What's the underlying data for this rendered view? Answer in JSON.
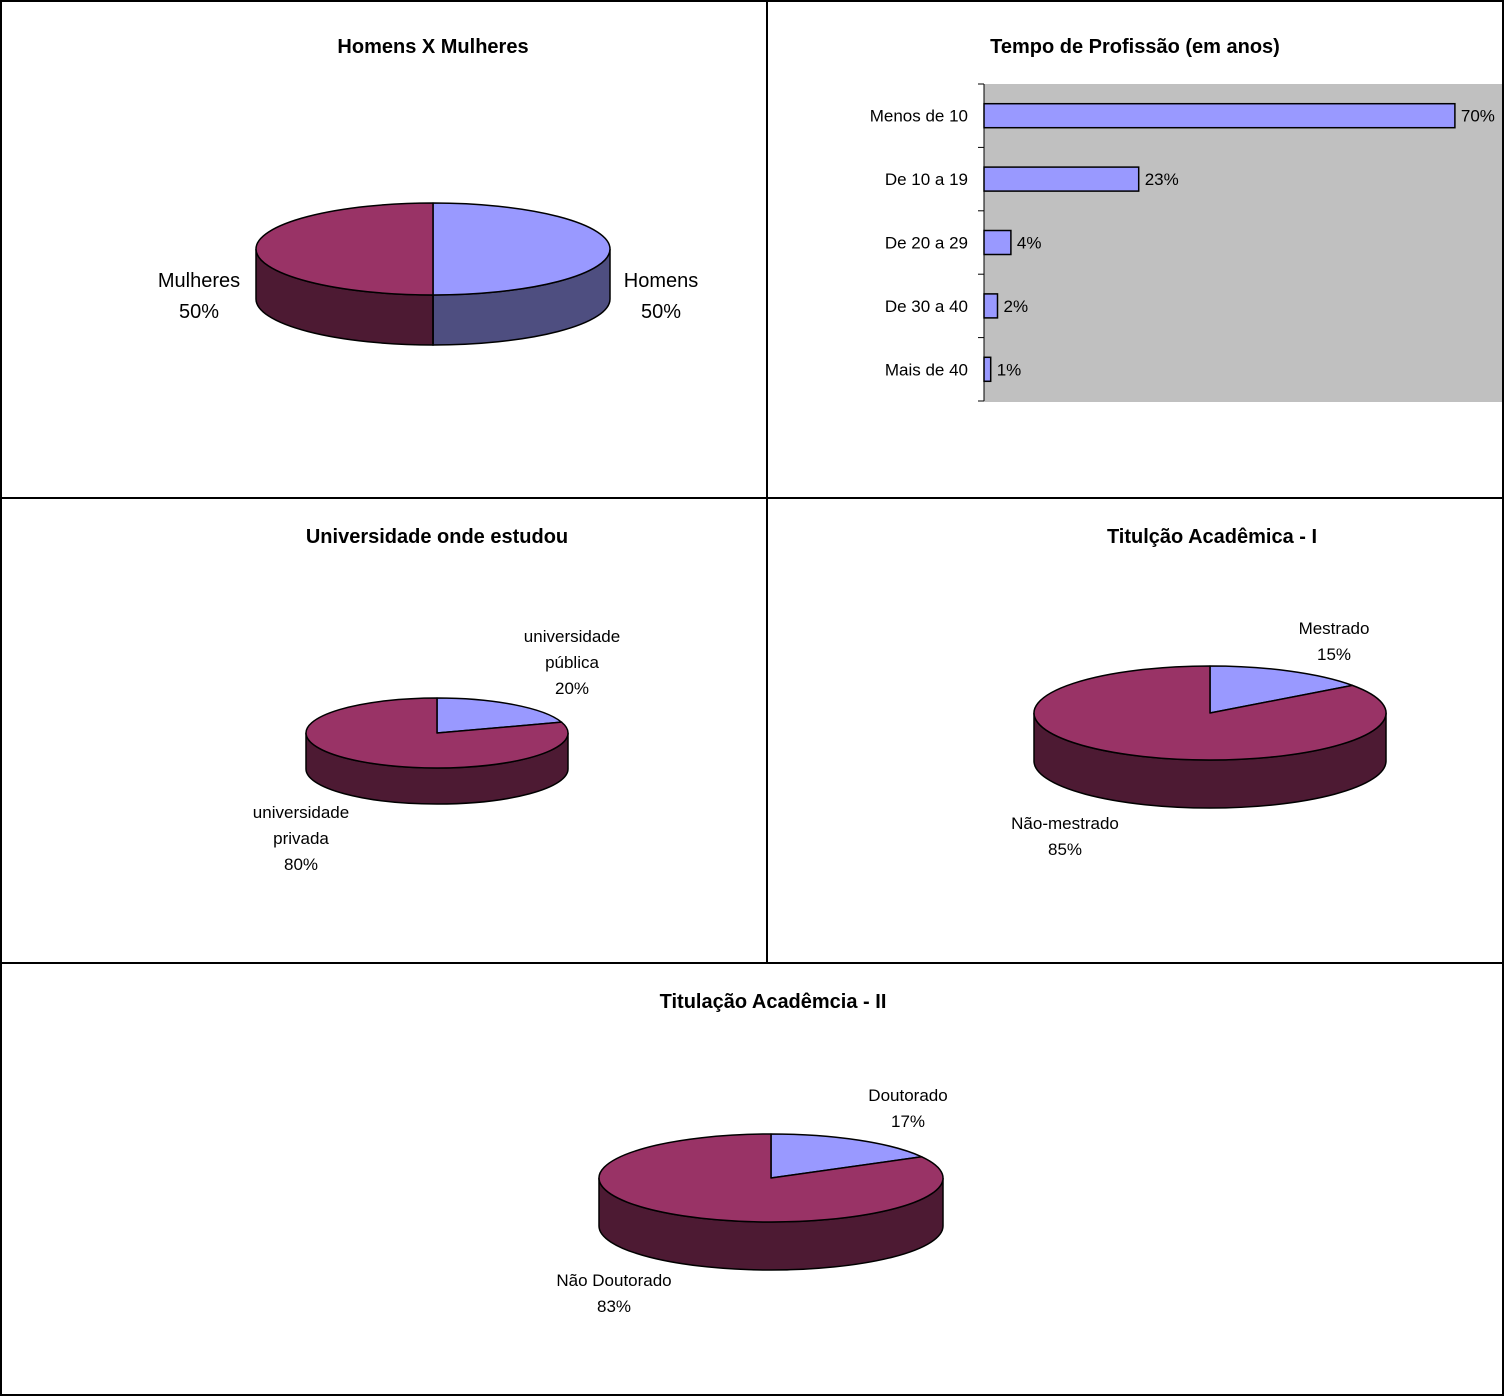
{
  "colors": {
    "lavender": "#9999FF",
    "lavender_dark": "#4E4E80",
    "plum": "#993366",
    "plum_dark": "#4D1A33",
    "plot_bg": "#C0C0C0",
    "frame": "#000000"
  },
  "chart_data": [
    {
      "type": "pie",
      "style": "3d",
      "title": "Homens X Mulheres",
      "slices": [
        {
          "label": "Homens",
          "pct": "50%",
          "value": 50,
          "color": "lavender"
        },
        {
          "label": "Mulheres",
          "pct": "50%",
          "value": 50,
          "color": "plum"
        }
      ]
    },
    {
      "type": "bar",
      "orientation": "horizontal",
      "title": "Tempo de Profissão (em anos)",
      "categories": [
        "Menos de 10",
        "De 10 a 19",
        "De 20 a 29",
        "De 30 a 40",
        "Mais de 40"
      ],
      "values": [
        70,
        23,
        4,
        2,
        1
      ],
      "value_labels": [
        "70%",
        "23%",
        "4%",
        "2%",
        "1%"
      ],
      "xlim": [
        0,
        77
      ],
      "bar_color": "lavender",
      "plot_background": "plot_bg",
      "grid": false
    },
    {
      "type": "pie",
      "style": "3d",
      "title": "Universidade onde estudou",
      "slices": [
        {
          "label": "universidade pública",
          "label_lines": [
            "universidade",
            "pública"
          ],
          "pct": "20%",
          "value": 20,
          "color": "lavender"
        },
        {
          "label": "universidade privada",
          "label_lines": [
            "universidade",
            "privada"
          ],
          "pct": "80%",
          "value": 80,
          "color": "plum"
        }
      ]
    },
    {
      "type": "pie",
      "style": "3d",
      "title": "Titulção Acadêmica - I",
      "slices": [
        {
          "label": "Mestrado",
          "pct": "15%",
          "value": 15,
          "color": "lavender"
        },
        {
          "label": "Não-mestrado",
          "pct": "85%",
          "value": 85,
          "color": "plum"
        }
      ]
    },
    {
      "type": "pie",
      "style": "3d",
      "title": "Titulação Acadêmcia - II",
      "slices": [
        {
          "label": "Doutorado",
          "pct": "17%",
          "value": 17,
          "color": "lavender"
        },
        {
          "label": "Não Doutorado",
          "pct": "83%",
          "value": 83,
          "color": "plum"
        }
      ]
    }
  ]
}
